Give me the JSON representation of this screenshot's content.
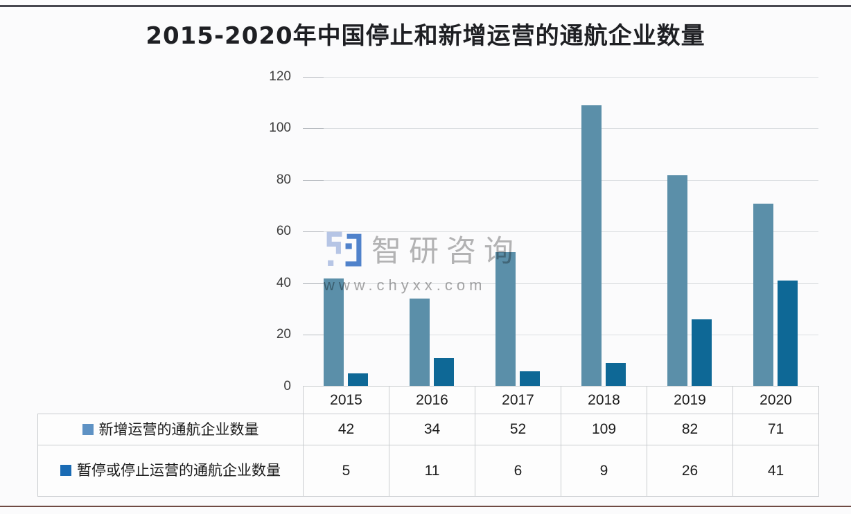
{
  "page": {
    "title": "2015-2020年中国停止和新增运营的通航企业数量",
    "background": "#fbfbfc",
    "top_rule_color": "#47474f",
    "bottom_rule_color": "#6f4b44"
  },
  "watermark": {
    "logo_icon": "zhiyan-maze-logo",
    "brand": "智研咨询",
    "url": "www.chyxx.com",
    "brand_color": "#b5b5b5",
    "url_color": "#a8a8a8",
    "logo_light_color": "#b9c8e8",
    "logo_dark_color": "#5184ce"
  },
  "chart_data": {
    "type": "bar",
    "title": "2015-2020年中国停止和新增运营的通航企业数量",
    "categories": [
      "2015",
      "2016",
      "2017",
      "2018",
      "2019",
      "2020"
    ],
    "series": [
      {
        "id": "new-operating",
        "name": "新增运营的通航企业数量",
        "values": [
          42,
          34,
          52,
          109,
          82,
          71
        ],
        "color": "#5b8fa9",
        "legend_color": "#5e92c4"
      },
      {
        "id": "suspended-or-stopped",
        "name": "暂停或停止运营的通航企业数量",
        "values": [
          5,
          11,
          6,
          9,
          26,
          41
        ],
        "color": "#0e6896",
        "legend_color": "#1a6bb4"
      }
    ],
    "ylim": [
      0,
      120
    ],
    "ytick_step": 20,
    "grid": true,
    "legend_position": "table-left",
    "data_table_shown": true
  }
}
